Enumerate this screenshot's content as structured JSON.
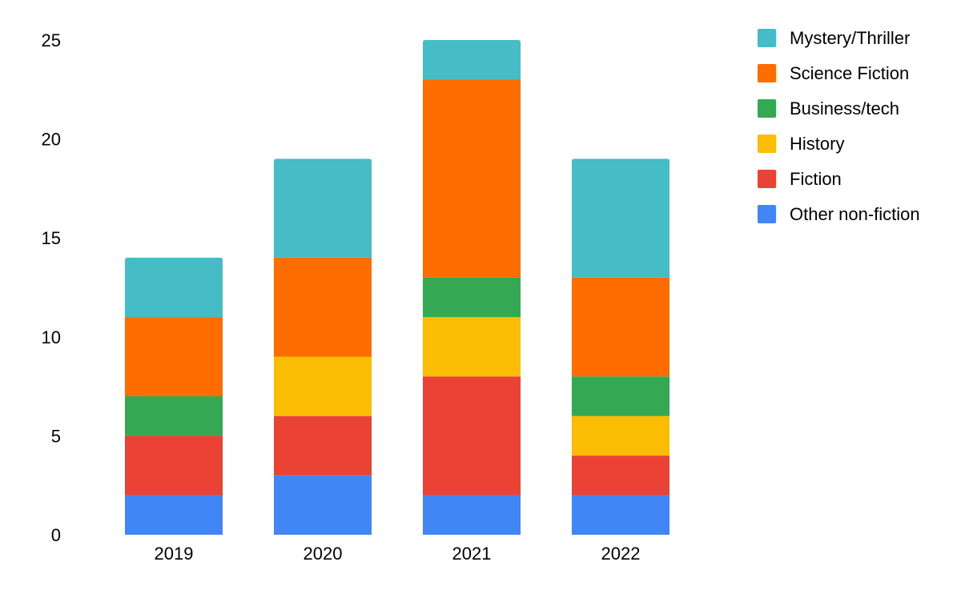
{
  "chart_data": {
    "type": "bar",
    "stacked": true,
    "categories": [
      "2019",
      "2020",
      "2021",
      "2022"
    ],
    "series": [
      {
        "name": "Other non-fiction",
        "color": "#4285f4",
        "values": [
          2,
          3,
          2,
          2
        ]
      },
      {
        "name": "Fiction",
        "color": "#ea4335",
        "values": [
          3,
          3,
          6,
          2
        ]
      },
      {
        "name": "History",
        "color": "#fbbc04",
        "values": [
          0,
          3,
          3,
          2
        ]
      },
      {
        "name": "Business/tech",
        "color": "#34a853",
        "values": [
          2,
          0,
          2,
          2
        ]
      },
      {
        "name": "Science Fiction",
        "color": "#ff6d01",
        "values": [
          4,
          5,
          10,
          5
        ]
      },
      {
        "name": "Mystery/Thriller",
        "color": "#46bdc6",
        "values": [
          3,
          5,
          2,
          6
        ]
      }
    ],
    "legend_order": [
      "Mystery/Thriller",
      "Science Fiction",
      "Business/tech",
      "History",
      "Fiction",
      "Other non-fiction"
    ],
    "legend_position": "right",
    "yticks": [
      0,
      5,
      10,
      15,
      20,
      25
    ],
    "ylim": [
      0,
      25
    ],
    "title": "",
    "xlabel": "",
    "ylabel": "",
    "grid": false
  }
}
